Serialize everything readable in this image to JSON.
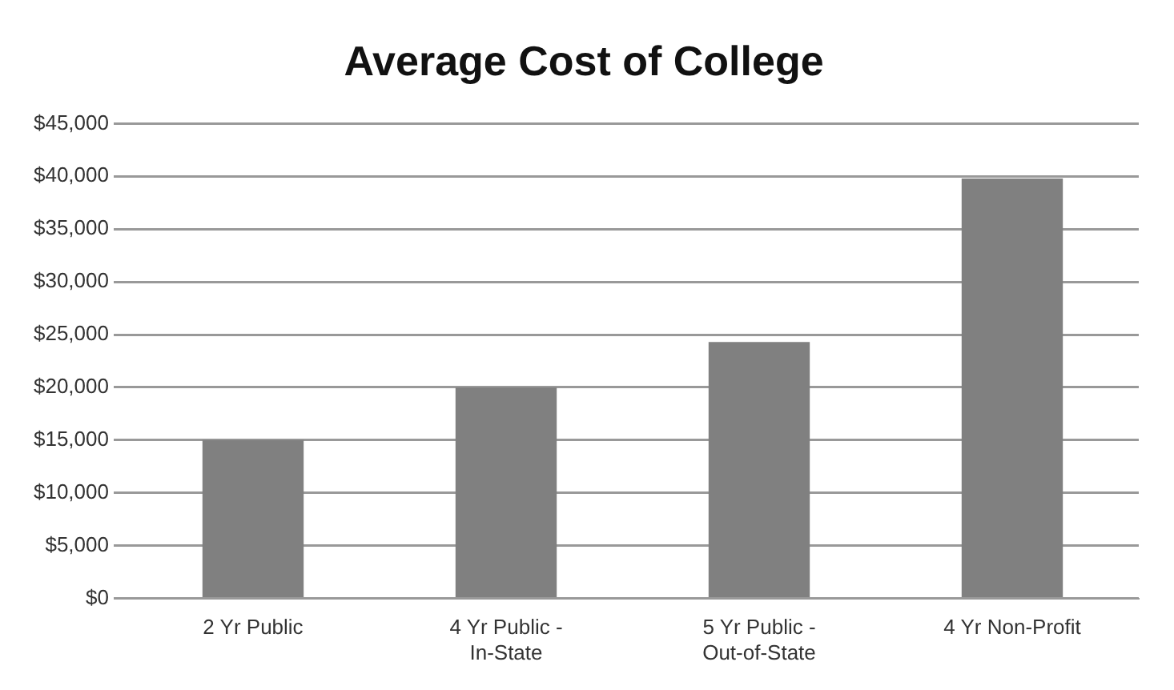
{
  "chart_data": {
    "type": "bar",
    "title": "Average Cost of College",
    "categories": [
      "2 Yr Public",
      "4 Yr Public - In-State",
      "5 Yr Public - Out-of-State",
      "4 Yr Non-Profit"
    ],
    "values": [
      15000,
      20000,
      24300,
      39800
    ],
    "color": "#808080",
    "ylim": [
      0,
      45000
    ],
    "yticks": [
      {
        "value": 0,
        "label": "$0"
      },
      {
        "value": 5000,
        "label": "$5,000"
      },
      {
        "value": 10000,
        "label": "$10,000"
      },
      {
        "value": 15000,
        "label": "$15,000"
      },
      {
        "value": 20000,
        "label": "$20,000"
      },
      {
        "value": 25000,
        "label": "$25,000"
      },
      {
        "value": 30000,
        "label": "$30,000"
      },
      {
        "value": 35000,
        "label": "$35,000"
      },
      {
        "value": 40000,
        "label": "$40,000"
      },
      {
        "value": 45000,
        "label": "$45,000"
      }
    ],
    "grid": "y",
    "legend": false
  }
}
